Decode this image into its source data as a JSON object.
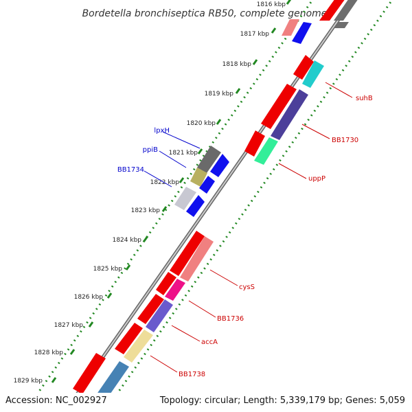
{
  "title": "Bordetella bronchiseptica RB50, complete genome",
  "footer": {
    "accession": "Accession: NC_002927",
    "topology": "Topology: circular; Length: 5,339,179 bp; Genes: 5,059"
  },
  "ruler": [
    {
      "label": "1816 kbp"
    },
    {
      "label": "1817 kbp"
    },
    {
      "label": "1818 kbp"
    },
    {
      "label": "1819 kbp"
    },
    {
      "label": "1820 kbp"
    },
    {
      "label": "1821 kbp"
    },
    {
      "label": "1822 kbp"
    },
    {
      "label": "1823 kbp"
    },
    {
      "label": "1824 kbp"
    },
    {
      "label": "1825 kbp"
    },
    {
      "label": "1826 kbp"
    },
    {
      "label": "1827 kbp"
    },
    {
      "label": "1828 kbp"
    },
    {
      "label": "1829 kbp"
    }
  ],
  "gene_labels": {
    "lpxH": "lpxH",
    "ppiB": "ppiB",
    "bb1734": "BB1734",
    "suhB": "suhB",
    "bb1730": "BB1730",
    "uppP": "uppP",
    "cysS": "cysS",
    "bb1736": "BB1736",
    "accA": "accA",
    "bb1738": "BB1738"
  },
  "colors": {
    "axis": "#888888",
    "ruler_dots": "#228822",
    "blue_label": "#0000cc",
    "red_label": "#cc0000"
  }
}
